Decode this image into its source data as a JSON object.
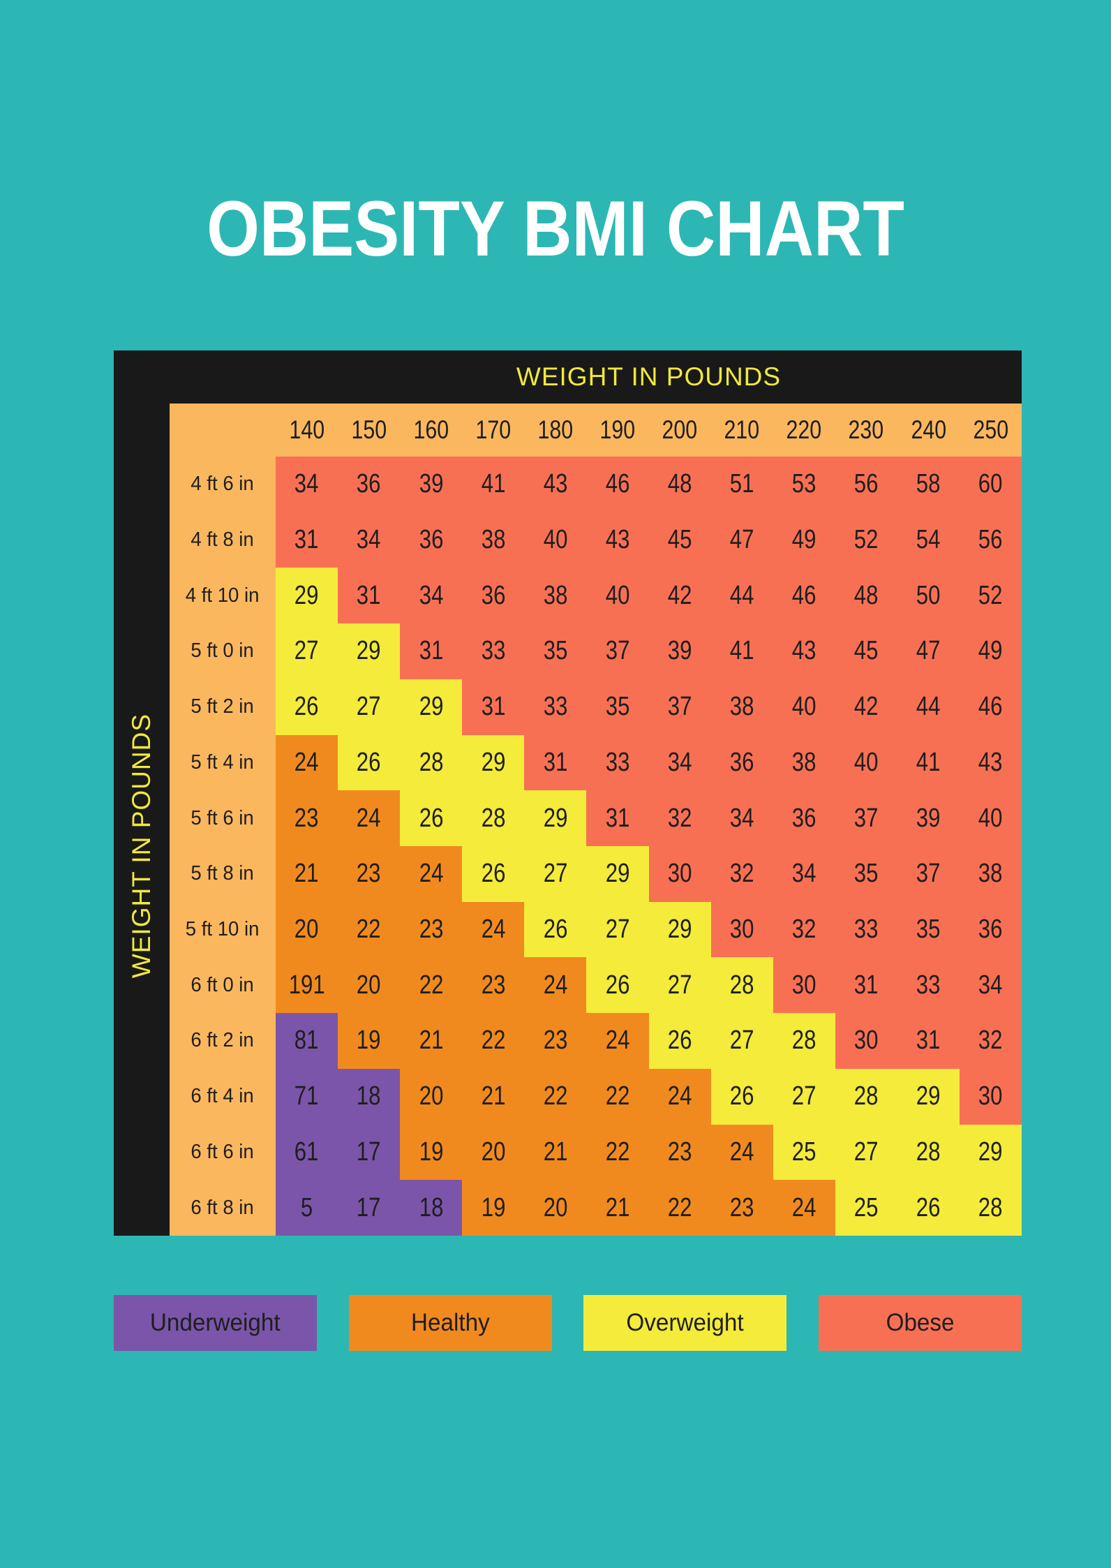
{
  "title": "OBESITY BMI CHART",
  "chart_data": {
    "type": "heatmap",
    "title": "OBESITY BMI CHART",
    "x_axis_label": "WEIGHT IN POUNDS",
    "y_axis_label": "WEIGHT IN POUNDS",
    "columns": [
      "140",
      "150",
      "160",
      "170",
      "180",
      "190",
      "200",
      "210",
      "220",
      "230",
      "240",
      "250"
    ],
    "rows": [
      "4 ft 6 in",
      "4 ft 8 in",
      "4 ft 10 in",
      "5 ft 0 in",
      "5 ft 2 in",
      "5 ft 4 in",
      "5 ft 6 in",
      "5 ft 8 in",
      "5 ft 10 in",
      "6 ft 0 in",
      "6 ft 2 in",
      "6 ft 4 in",
      "6 ft 6 in",
      "6 ft 8 in"
    ],
    "values": [
      [
        34,
        36,
        39,
        41,
        43,
        46,
        48,
        51,
        53,
        56,
        58,
        60
      ],
      [
        31,
        34,
        36,
        38,
        40,
        43,
        45,
        47,
        49,
        52,
        54,
        56
      ],
      [
        29,
        31,
        34,
        36,
        38,
        40,
        42,
        44,
        46,
        48,
        50,
        52
      ],
      [
        27,
        29,
        31,
        33,
        35,
        37,
        39,
        41,
        43,
        45,
        47,
        49
      ],
      [
        26,
        27,
        29,
        31,
        33,
        35,
        37,
        38,
        40,
        42,
        44,
        46
      ],
      [
        24,
        26,
        28,
        29,
        31,
        33,
        34,
        36,
        38,
        40,
        41,
        43
      ],
      [
        23,
        24,
        26,
        28,
        29,
        31,
        32,
        34,
        36,
        37,
        39,
        40
      ],
      [
        21,
        23,
        24,
        26,
        27,
        29,
        30,
        32,
        34,
        35,
        37,
        38
      ],
      [
        20,
        22,
        23,
        24,
        26,
        27,
        29,
        30,
        32,
        33,
        35,
        36
      ],
      [
        191,
        20,
        22,
        23,
        24,
        26,
        27,
        28,
        30,
        31,
        33,
        34
      ],
      [
        81,
        19,
        21,
        22,
        23,
        24,
        26,
        27,
        28,
        30,
        31,
        32
      ],
      [
        71,
        18,
        20,
        21,
        22,
        22,
        24,
        26,
        27,
        28,
        29,
        30
      ],
      [
        61,
        17,
        19,
        20,
        21,
        22,
        23,
        24,
        25,
        27,
        28,
        29
      ],
      [
        5,
        17,
        18,
        19,
        20,
        21,
        22,
        23,
        24,
        25,
        26,
        28
      ]
    ],
    "bands": [
      "BBBBBBBBBBBB",
      "BBBBBBBBBBBB",
      "OBBBBBBBBBBB",
      "OOBBBBBBBBBB",
      "OOOBBBBBBBBB",
      "HOOOBBBBBBBB",
      "HHOOOBBBBBBB",
      "HHHOOOBBBBBB",
      "HHHHOOOBBBBB",
      "HHHHHOOOBBBB",
      "UHHHHHOOOBBB",
      "UUHHHHHOOOOB",
      "UUHHHHHHOOOO",
      "UUUHHHHHHOOO"
    ]
  },
  "legend": {
    "items": [
      {
        "code": "U",
        "label": "Underweight",
        "color": "#7B55A9"
      },
      {
        "code": "H",
        "label": "Healthy",
        "color": "#F18A1E"
      },
      {
        "code": "O",
        "label": "Overweight",
        "color": "#F4EB3B"
      },
      {
        "code": "B",
        "label": "Obese",
        "color": "#F87054"
      }
    ]
  },
  "colors": {
    "background": "#2CB7B4",
    "frame": "#191919",
    "header": "#FBB75E",
    "axis_text": "#F0E93C",
    "title_text": "#FFFFFF",
    "cell_text": "#1E1E1E"
  }
}
